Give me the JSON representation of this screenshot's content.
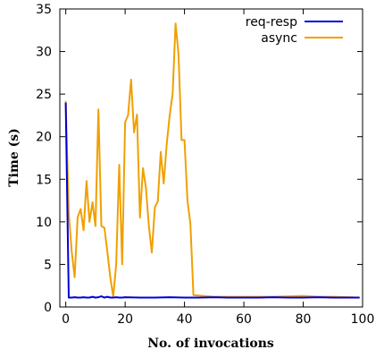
{
  "chart_data": {
    "type": "line",
    "title": "",
    "xlabel": "No. of invocations",
    "ylabel": "Time (s)",
    "xlim": [
      -2,
      100
    ],
    "ylim": [
      0,
      35
    ],
    "xticks": [
      0,
      20,
      40,
      60,
      80,
      100
    ],
    "yticks": [
      0,
      5,
      10,
      15,
      20,
      25,
      30,
      35
    ],
    "grid": false,
    "legend_position": "top-right",
    "series": [
      {
        "name": "req-resp",
        "color": "#0000d8",
        "x": [
          0,
          1,
          2,
          3,
          4,
          5,
          6,
          7,
          8,
          9,
          10,
          11,
          12,
          13,
          14,
          15,
          16,
          17,
          18,
          19,
          20,
          25,
          30,
          35,
          40,
          45,
          50,
          55,
          60,
          65,
          70,
          75,
          80,
          85,
          90,
          95,
          99
        ],
        "y": [
          24,
          1.1,
          1.1,
          1.15,
          1.1,
          1.1,
          1.15,
          1.1,
          1.1,
          1.2,
          1.1,
          1.15,
          1.25,
          1.1,
          1.2,
          1.1,
          1.1,
          1.15,
          1.1,
          1.1,
          1.15,
          1.1,
          1.1,
          1.15,
          1.1,
          1.1,
          1.15,
          1.1,
          1.1,
          1.1,
          1.15,
          1.1,
          1.1,
          1.15,
          1.1,
          1.1,
          1.1
        ]
      },
      {
        "name": "async",
        "color": "#f0a000",
        "x": [
          0,
          1,
          2,
          3,
          4,
          5,
          6,
          7,
          8,
          9,
          10,
          11,
          12,
          13,
          14,
          15,
          16,
          17,
          18,
          19,
          20,
          21,
          22,
          23,
          24,
          25,
          26,
          27,
          28,
          29,
          30,
          31,
          32,
          33,
          34,
          35,
          36,
          37,
          38,
          39,
          40,
          41,
          42,
          43,
          50,
          60,
          70,
          80,
          85,
          90,
          99
        ],
        "y": [
          24.2,
          11,
          6.5,
          3.5,
          10.5,
          11.5,
          9,
          14.8,
          10,
          12.3,
          9.5,
          23.2,
          9.5,
          9.3,
          6.5,
          3.5,
          1.2,
          5,
          16.7,
          5,
          21.7,
          22.5,
          26.7,
          20.5,
          22.6,
          10.5,
          16.3,
          14,
          9.5,
          6.4,
          11.7,
          12.4,
          18.2,
          14.5,
          19,
          22.5,
          25,
          33.3,
          29.7,
          19.6,
          19.6,
          12.5,
          9.8,
          1.4,
          1.2,
          1.2,
          1.2,
          1.3,
          1.2,
          1.2,
          1.1
        ]
      }
    ]
  }
}
